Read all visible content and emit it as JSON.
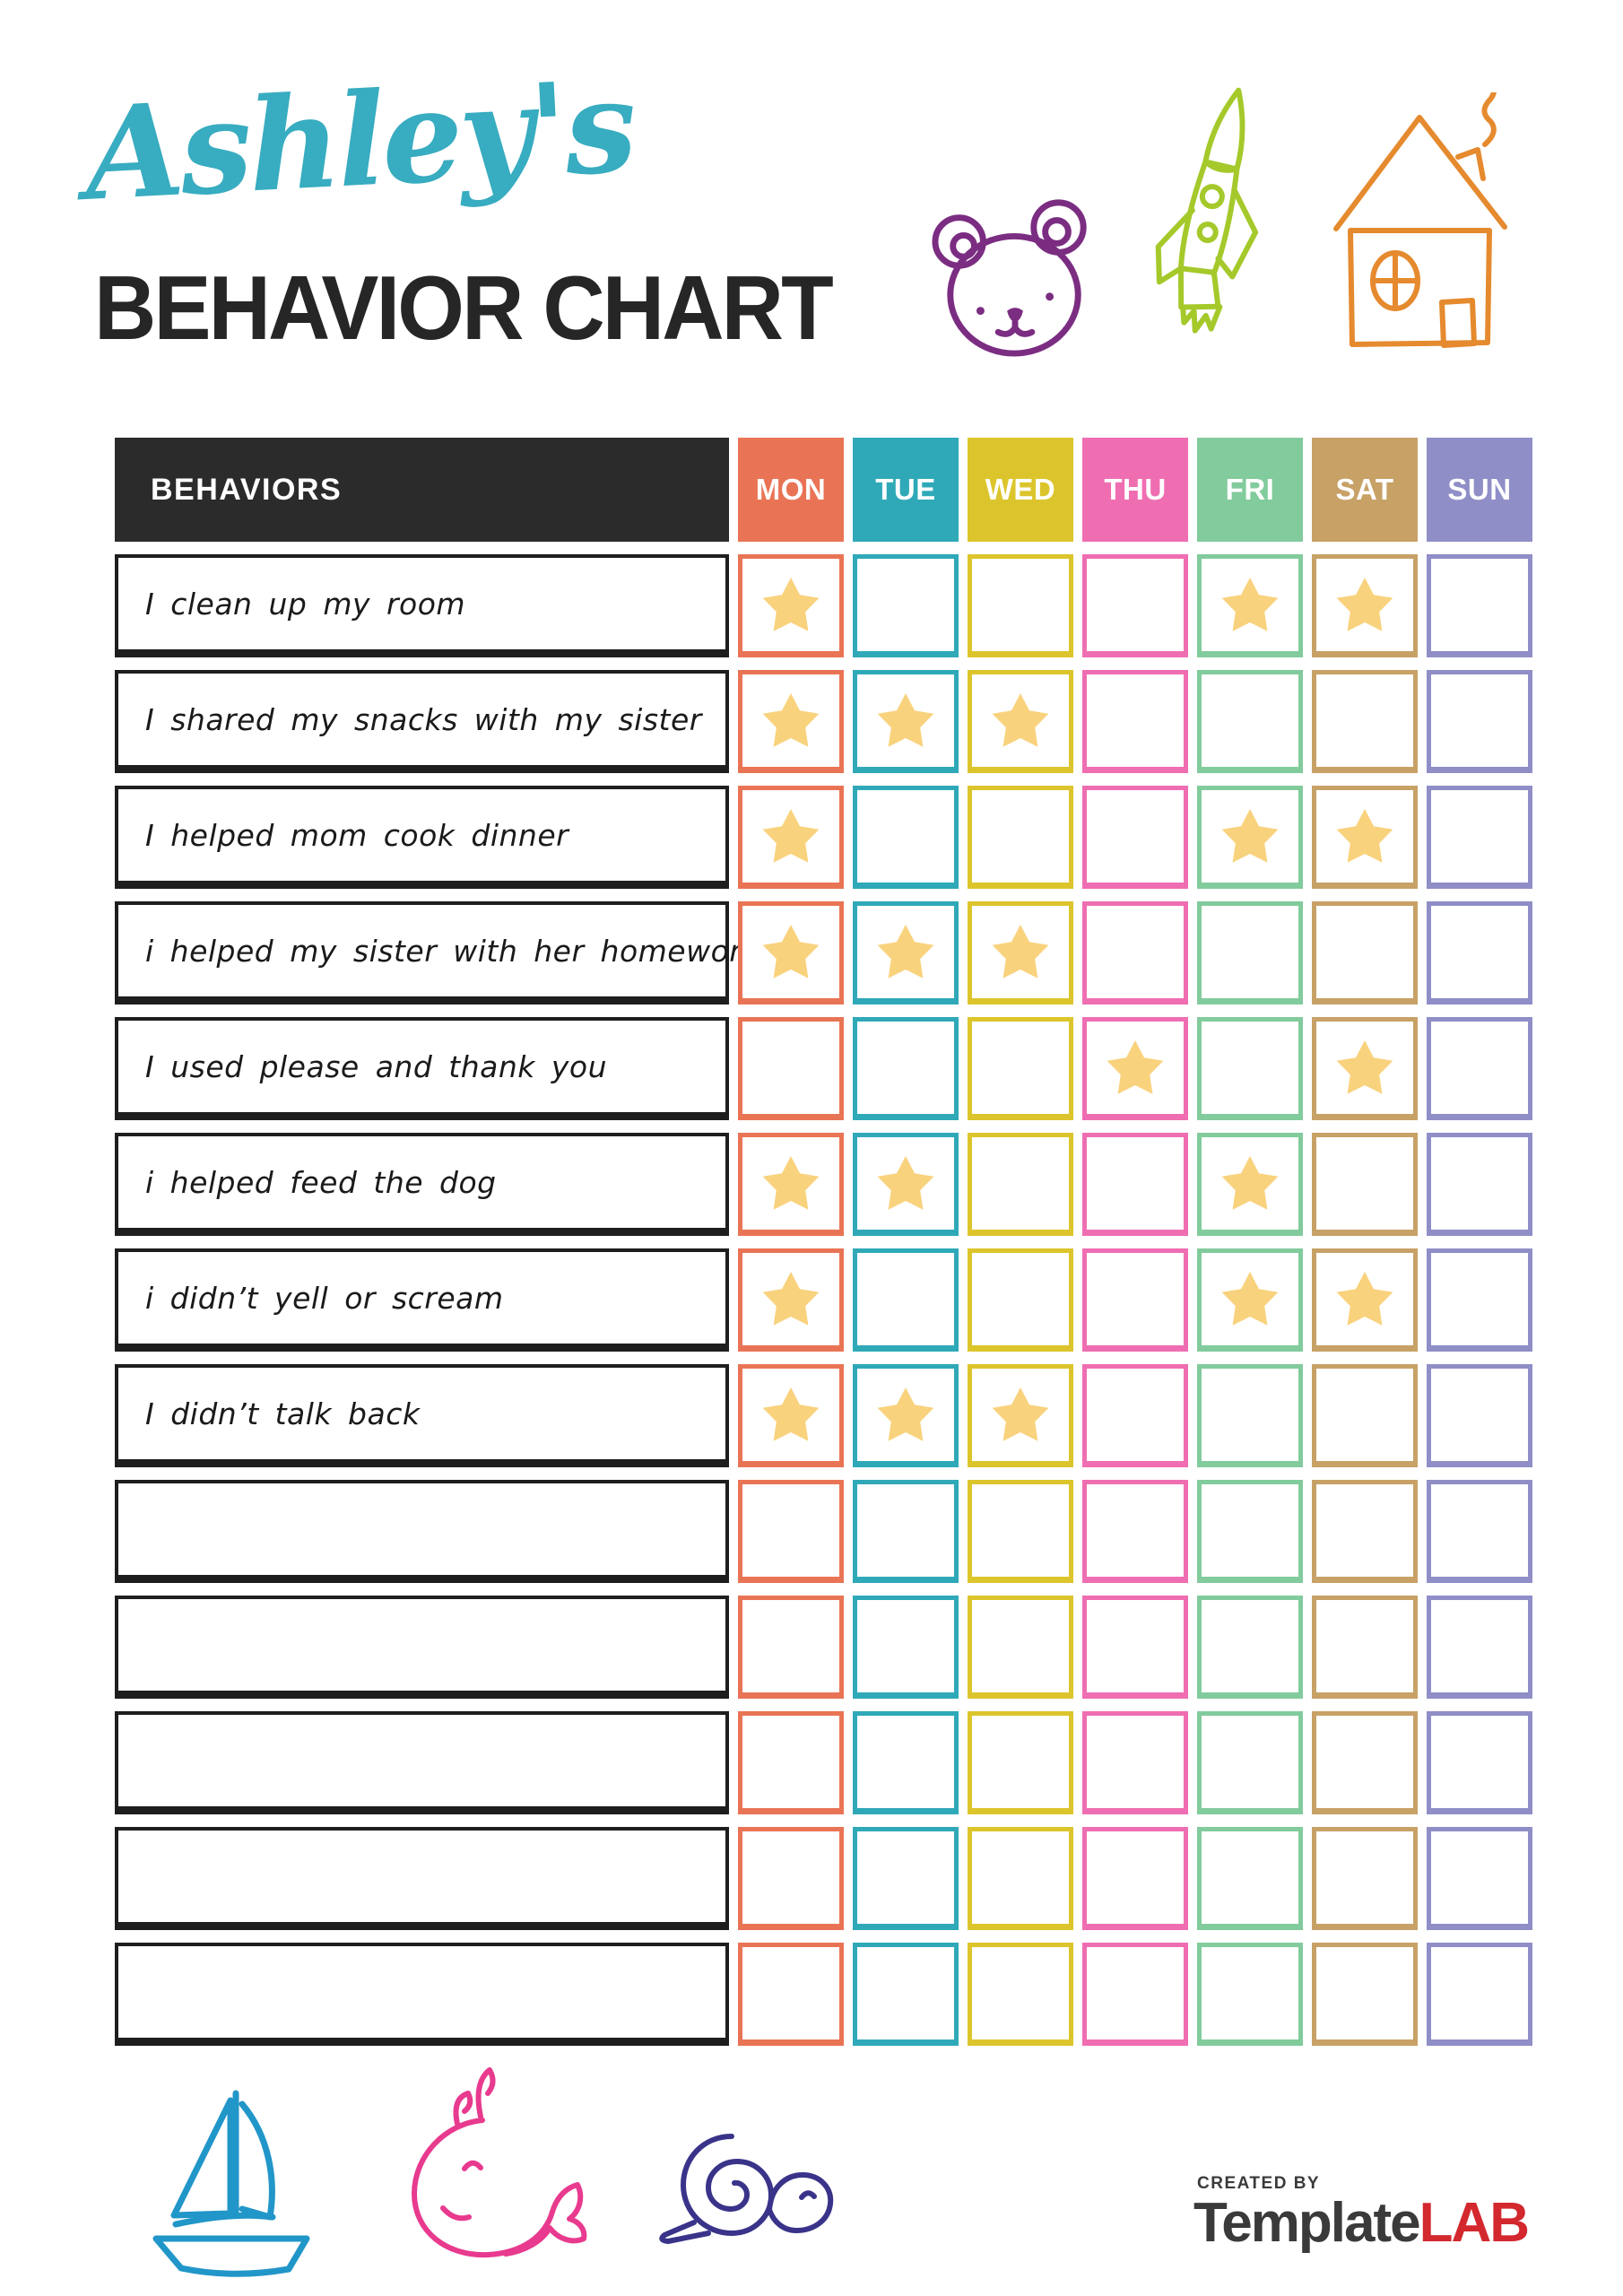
{
  "header": {
    "script_title": "Ashley's",
    "main_title": "BEHAVIOR CHART"
  },
  "table": {
    "behaviors_header": "BEHAVIORS",
    "header_bg": "#2B2B2B",
    "star_color": "#F9D27D",
    "days": [
      {
        "label": "MON",
        "color": "#E97455"
      },
      {
        "label": "TUE",
        "color": "#2FA9B8"
      },
      {
        "label": "WED",
        "color": "#DCC52C"
      },
      {
        "label": "THU",
        "color": "#EF6EB2"
      },
      {
        "label": "FRI",
        "color": "#82CB9C"
      },
      {
        "label": "SAT",
        "color": "#C7A166"
      },
      {
        "label": "SUN",
        "color": "#8F8EC7"
      }
    ],
    "rows": [
      {
        "label": "I clean up my room",
        "stars": [
          0,
          4,
          5
        ]
      },
      {
        "label": "I shared my snacks with my sister",
        "stars": [
          0,
          1,
          2
        ]
      },
      {
        "label": "I helped mom cook dinner",
        "stars": [
          0,
          4,
          5
        ]
      },
      {
        "label": "i helped my sister with her homework",
        "stars": [
          0,
          1,
          2
        ]
      },
      {
        "label": "I used please and thank you",
        "stars": [
          3,
          5
        ]
      },
      {
        "label": "i helped feed the dog",
        "stars": [
          0,
          1,
          4
        ]
      },
      {
        "label": "i didn’t yell or scream",
        "stars": [
          0,
          4,
          5
        ]
      },
      {
        "label": "I didn’t talk back",
        "stars": [
          0,
          1,
          2
        ]
      },
      {
        "label": "",
        "stars": []
      },
      {
        "label": "",
        "stars": []
      },
      {
        "label": "",
        "stars": []
      },
      {
        "label": "",
        "stars": []
      },
      {
        "label": "",
        "stars": []
      }
    ]
  },
  "doodles": {
    "bear": {
      "color": "#7B2D82"
    },
    "rocket": {
      "color": "#A5C92B"
    },
    "house": {
      "color": "#E58A2E"
    },
    "sailboat": {
      "color": "#2196C8"
    },
    "whale": {
      "color": "#E83A8E"
    },
    "snail": {
      "color": "#393489"
    }
  },
  "footer": {
    "credit_prefix": "CREATED BY",
    "brand_dark": "Template",
    "brand_accent": "LAB"
  },
  "colors": {
    "title_script": "#38ACC0",
    "title_main": "#262626",
    "brand_gray": "#3A3A3A",
    "brand_red": "#D2282E"
  }
}
